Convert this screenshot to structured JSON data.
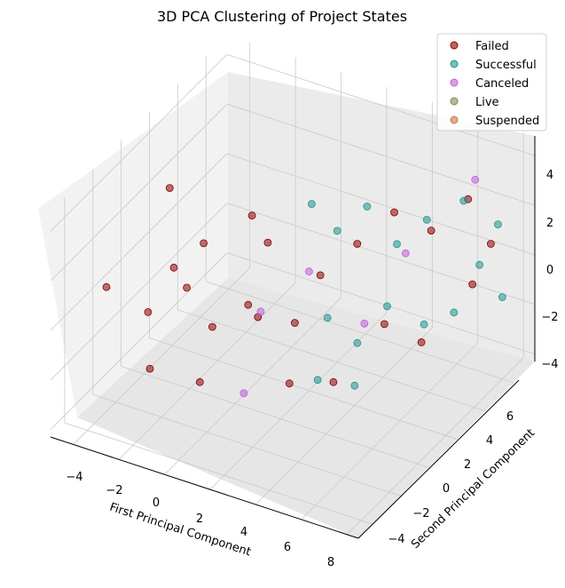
{
  "chart_data": {
    "type": "scatter",
    "title": "3D PCA Clustering of Project States",
    "xlabel": "First Principal Component",
    "ylabel": "Second Principal Component",
    "zlabel": "",
    "x_ticks": [
      "−4",
      "−2",
      "0",
      "2",
      "4",
      "6",
      "8"
    ],
    "y_ticks": [
      "−4",
      "−2",
      "0",
      "2",
      "4",
      "6"
    ],
    "z_ticks": [
      "−4",
      "−2",
      "0",
      "2",
      "4"
    ],
    "xlim": [
      -5,
      8.5
    ],
    "ylim": [
      -5,
      7.5
    ],
    "zlim": [
      -4.3,
      4.8
    ],
    "grid": true,
    "legend_position": "top-right",
    "series": [
      {
        "name": "Failed",
        "color": "#8b0000",
        "points": [
          [
            -3.8,
            1.5,
            2.4
          ],
          [
            -3.6,
            -3.3,
            1.2
          ],
          [
            -3.2,
            -1.0,
            -1.0
          ],
          [
            -3.0,
            0.5,
            0.0
          ],
          [
            -2.5,
            -2.0,
            -2.5
          ],
          [
            -2.0,
            1.0,
            1.0
          ],
          [
            -1.5,
            -1.0,
            0.5
          ],
          [
            -1.0,
            0.0,
            -1.5
          ],
          [
            -0.5,
            2.0,
            2.0
          ],
          [
            0.0,
            -2.5,
            -2.0
          ],
          [
            0.5,
            1.5,
            1.5
          ],
          [
            1.0,
            0.0,
            -0.5
          ],
          [
            1.5,
            -1.5,
            1.0
          ],
          [
            2.0,
            1.0,
            -1.0
          ],
          [
            2.5,
            2.0,
            0.5
          ],
          [
            3.0,
            -1.0,
            -2.0
          ],
          [
            3.5,
            3.0,
            1.5
          ],
          [
            4.0,
            0.5,
            -2.5
          ],
          [
            4.5,
            4.0,
            2.5
          ],
          [
            5.0,
            2.5,
            -1.0
          ],
          [
            5.5,
            5.0,
            1.5
          ],
          [
            6.0,
            3.5,
            -2.0
          ],
          [
            6.5,
            6.0,
            2.5
          ],
          [
            7.0,
            5.5,
            -0.5
          ],
          [
            7.5,
            6.0,
            1.0
          ]
        ]
      },
      {
        "name": "Successful",
        "color": "#20948b",
        "points": [
          [
            1.5,
            3.0,
            2.5
          ],
          [
            2.0,
            4.0,
            1.0
          ],
          [
            2.5,
            2.5,
            -1.5
          ],
          [
            3.0,
            4.5,
            2.0
          ],
          [
            3.5,
            3.0,
            -2.5
          ],
          [
            4.0,
            5.0,
            0.5
          ],
          [
            4.5,
            3.5,
            -1.0
          ],
          [
            5.0,
            5.5,
            1.5
          ],
          [
            5.5,
            4.5,
            -2.0
          ],
          [
            6.0,
            6.5,
            2.0
          ],
          [
            6.5,
            5.0,
            -1.5
          ],
          [
            7.0,
            6.0,
            0.0
          ],
          [
            7.5,
            6.5,
            1.5
          ],
          [
            8.0,
            6.0,
            -1.0
          ],
          [
            3.0,
            1.0,
            -3.0
          ],
          [
            4.0,
            2.0,
            -3.5
          ]
        ]
      },
      {
        "name": "Canceled",
        "color": "#bf5fd6",
        "points": [
          [
            0.5,
            1.0,
            -1.0
          ],
          [
            2.0,
            2.0,
            0.5
          ],
          [
            3.5,
            3.5,
            -2.0
          ],
          [
            5.0,
            4.0,
            1.0
          ],
          [
            6.5,
            6.5,
            3.0
          ],
          [
            1.0,
            -1.0,
            -3.0
          ]
        ]
      },
      {
        "name": "Live",
        "color": "#7f8c4d",
        "points": []
      },
      {
        "name": "Suspended",
        "color": "#c8754d",
        "points": []
      }
    ]
  }
}
